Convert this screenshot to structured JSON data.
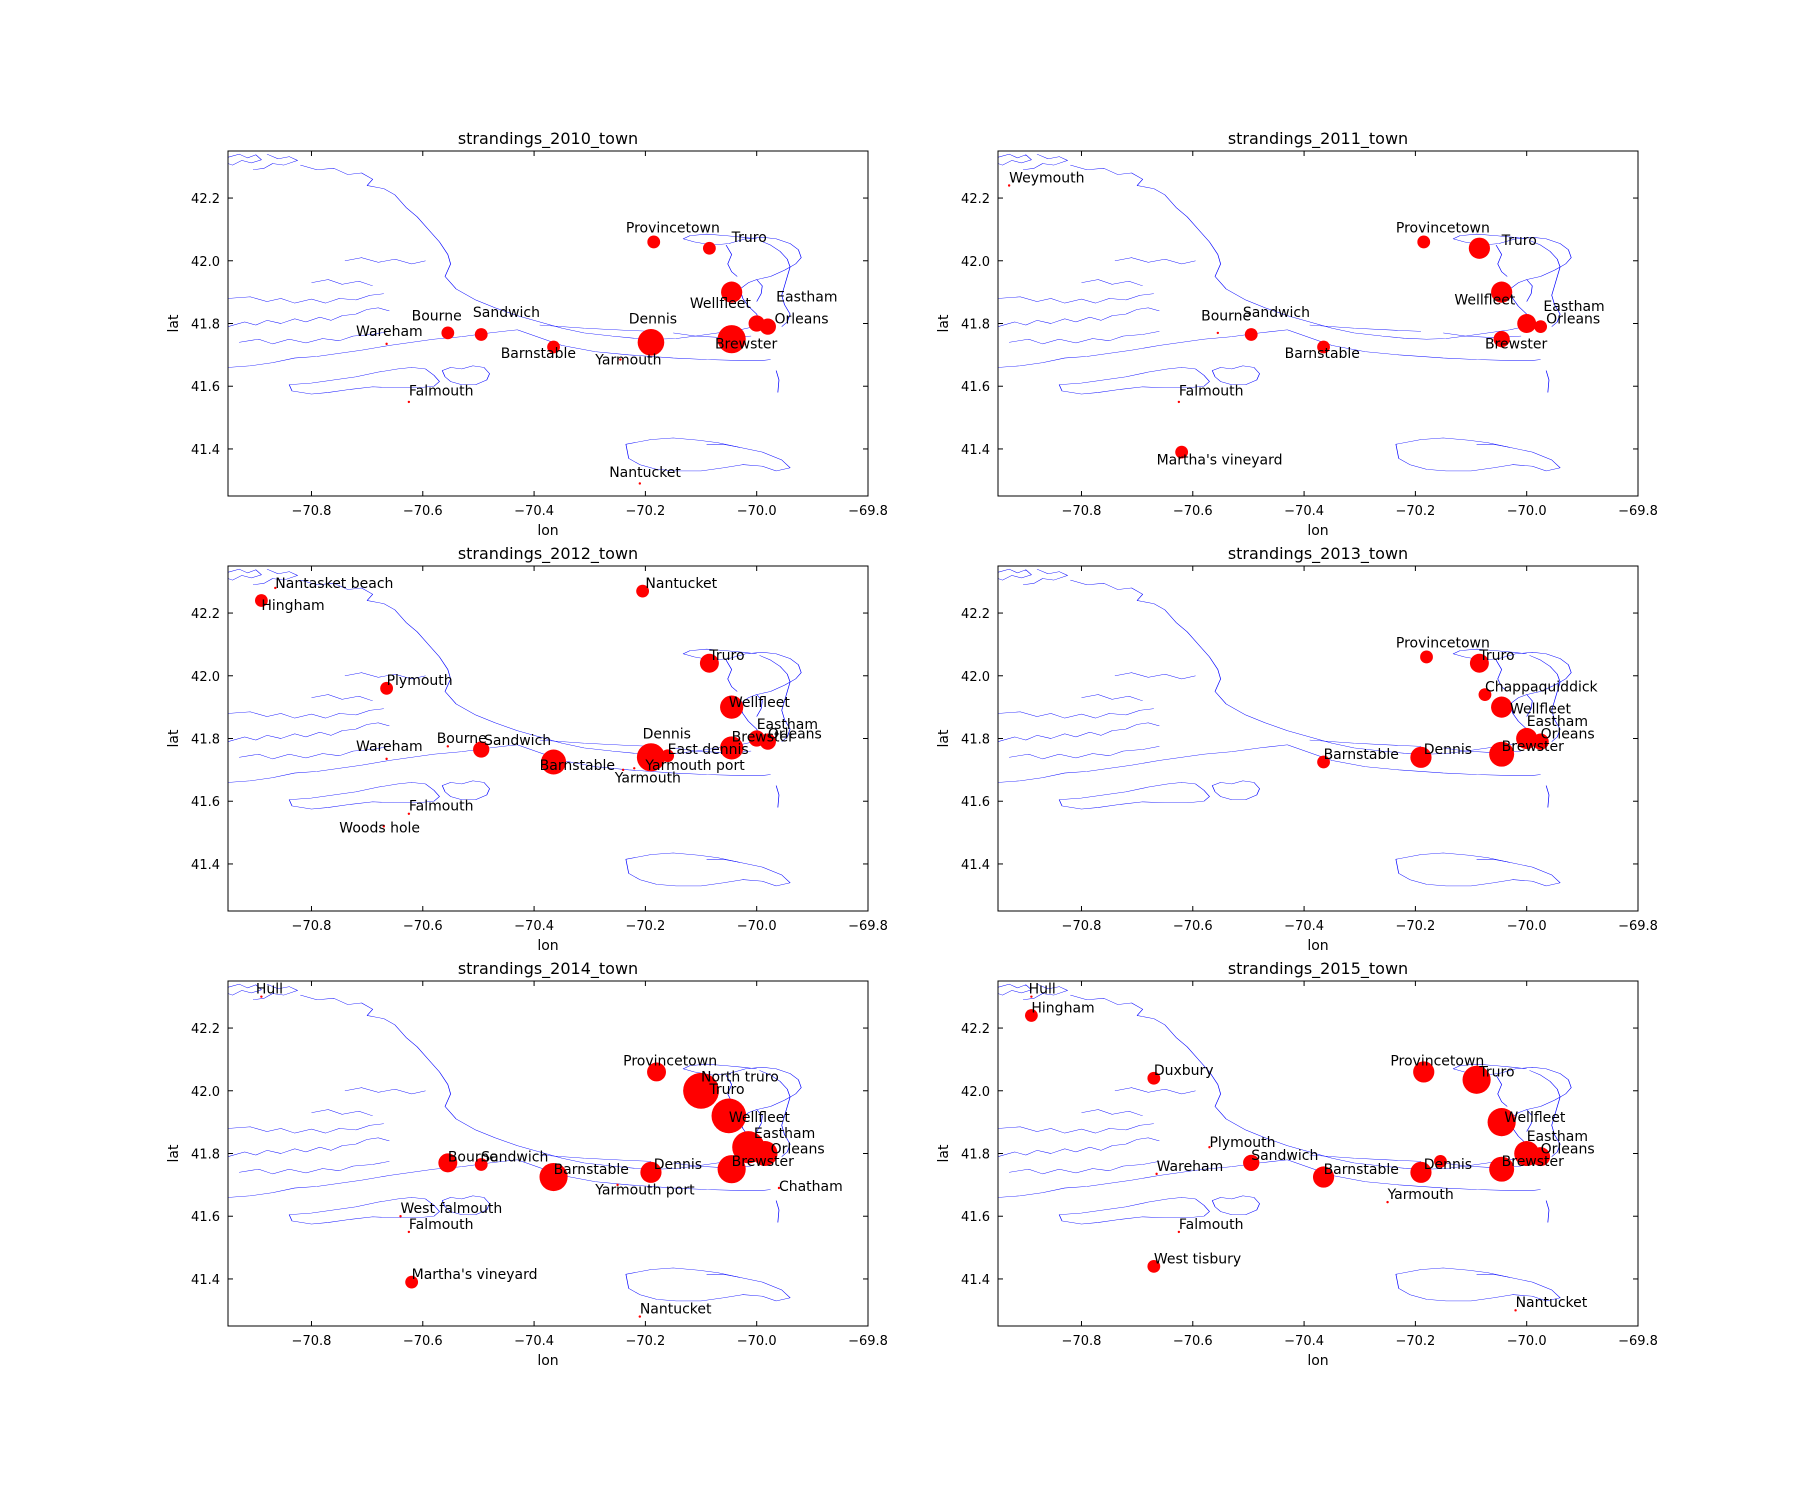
{
  "figure": {
    "xlabel": "lon",
    "ylabel": "lat",
    "xticks": [
      "−70.8",
      "−70.6",
      "−70.4",
      "−70.2",
      "−70.0",
      "−69.8"
    ],
    "yticks": [
      "41.4",
      "41.6",
      "41.8",
      "42.0",
      "42.2"
    ],
    "coast_color": "#0000ff",
    "marker_color": "#ff0000"
  },
  "chart_data": [
    {
      "type": "scatter",
      "title": "strandings_2010_town",
      "xlabel": "lon",
      "ylabel": "lat",
      "xlim": [
        -70.95,
        -69.8
      ],
      "ylim": [
        41.25,
        42.35
      ],
      "points": [
        {
          "label": "Provincetown",
          "lon": -70.185,
          "lat": 42.06,
          "size": 1,
          "lx": -70.235,
          "ly": 42.09
        },
        {
          "label": "Truro",
          "lon": -70.085,
          "lat": 42.04,
          "size": 1,
          "lx": -70.045,
          "ly": 42.06
        },
        {
          "label": "Wellfleet",
          "lon": -70.045,
          "lat": 41.9,
          "size": 4,
          "lx": -70.12,
          "ly": 41.85
        },
        {
          "label": "Eastham",
          "lon": -70.0,
          "lat": 41.8,
          "size": 2,
          "lx": -69.965,
          "ly": 41.87
        },
        {
          "label": "Orleans",
          "lon": -69.98,
          "lat": 41.79,
          "size": 2,
          "lx": -69.968,
          "ly": 41.8
        },
        {
          "label": "Brewster",
          "lon": -70.045,
          "lat": 41.75,
          "size": 8,
          "lx": -70.075,
          "ly": 41.72
        },
        {
          "label": "Dennis",
          "lon": -70.19,
          "lat": 41.74,
          "size": 7,
          "lx": -70.23,
          "ly": 41.8
        },
        {
          "label": "Yarmouth",
          "lon": -70.245,
          "lat": 41.685,
          "size": 0,
          "lx": -70.29,
          "ly": 41.67
        },
        {
          "label": "Barnstable",
          "lon": -70.365,
          "lat": 41.725,
          "size": 1,
          "lx": -70.46,
          "ly": 41.69
        },
        {
          "label": "Sandwich",
          "lon": -70.495,
          "lat": 41.765,
          "size": 1,
          "lx": -70.51,
          "ly": 41.82
        },
        {
          "label": "Bourne",
          "lon": -70.555,
          "lat": 41.77,
          "size": 1,
          "lx": -70.62,
          "ly": 41.81
        },
        {
          "label": "Wareham",
          "lon": -70.665,
          "lat": 41.735,
          "size": 0,
          "lx": -70.72,
          "ly": 41.76
        },
        {
          "label": "Falmouth",
          "lon": -70.625,
          "lat": 41.55,
          "size": 0,
          "lx": -70.625,
          "ly": 41.57
        },
        {
          "label": "Nantucket",
          "lon": -70.21,
          "lat": 41.29,
          "size": 0,
          "lx": -70.265,
          "ly": 41.31
        }
      ]
    },
    {
      "type": "scatter",
      "title": "strandings_2011_town",
      "xlabel": "lon",
      "ylabel": "lat",
      "xlim": [
        -70.95,
        -69.8
      ],
      "ylim": [
        41.25,
        42.35
      ],
      "points": [
        {
          "label": "Weymouth",
          "lon": -70.93,
          "lat": 42.24,
          "size": 0,
          "lx": -70.93,
          "ly": 42.25
        },
        {
          "label": "Provincetown",
          "lon": -70.185,
          "lat": 42.06,
          "size": 1,
          "lx": -70.235,
          "ly": 42.09
        },
        {
          "label": "Truro",
          "lon": -70.085,
          "lat": 42.04,
          "size": 4,
          "lx": -70.045,
          "ly": 42.05
        },
        {
          "label": "Wellfleet",
          "lon": -70.045,
          "lat": 41.9,
          "size": 4,
          "lx": -70.13,
          "ly": 41.86
        },
        {
          "label": "Eastham",
          "lon": -70.0,
          "lat": 41.8,
          "size": 3,
          "lx": -69.97,
          "ly": 41.84
        },
        {
          "label": "Orleans",
          "lon": -69.975,
          "lat": 41.79,
          "size": 1,
          "lx": -69.965,
          "ly": 41.8
        },
        {
          "label": "Brewster",
          "lon": -70.045,
          "lat": 41.75,
          "size": 2,
          "lx": -70.075,
          "ly": 41.72
        },
        {
          "label": "Barnstable",
          "lon": -70.365,
          "lat": 41.725,
          "size": 1,
          "lx": -70.435,
          "ly": 41.69
        },
        {
          "label": "Sandwich",
          "lon": -70.495,
          "lat": 41.765,
          "size": 1,
          "lx": -70.51,
          "ly": 41.82
        },
        {
          "label": "Bourne",
          "lon": -70.555,
          "lat": 41.77,
          "size": 0,
          "lx": -70.585,
          "ly": 41.81
        },
        {
          "label": "Falmouth",
          "lon": -70.625,
          "lat": 41.55,
          "size": 0,
          "lx": -70.625,
          "ly": 41.57
        },
        {
          "label": "Martha's vineyard",
          "lon": -70.62,
          "lat": 41.39,
          "size": 1,
          "lx": -70.665,
          "ly": 41.35
        }
      ]
    },
    {
      "type": "scatter",
      "title": "strandings_2012_town",
      "xlabel": "lon",
      "ylabel": "lat",
      "xlim": [
        -70.95,
        -69.8
      ],
      "ylim": [
        41.25,
        42.35
      ],
      "points": [
        {
          "label": "Nantasket beach",
          "lon": -70.865,
          "lat": 42.28,
          "size": 0,
          "lx": -70.865,
          "ly": 42.28
        },
        {
          "label": "Hingham",
          "lon": -70.89,
          "lat": 42.24,
          "size": 1,
          "lx": -70.89,
          "ly": 42.21
        },
        {
          "label": "Nantucket",
          "lon": -70.205,
          "lat": 42.27,
          "size": 1,
          "lx": -70.2,
          "ly": 42.28
        },
        {
          "label": "Truro",
          "lon": -70.085,
          "lat": 42.04,
          "size": 3,
          "lx": -70.085,
          "ly": 42.05
        },
        {
          "label": "Plymouth",
          "lon": -70.665,
          "lat": 41.96,
          "size": 1,
          "lx": -70.665,
          "ly": 41.97
        },
        {
          "label": "Wellfleet",
          "lon": -70.045,
          "lat": 41.9,
          "size": 5,
          "lx": -70.05,
          "ly": 41.9
        },
        {
          "label": "Eastham",
          "lon": -70.0,
          "lat": 41.8,
          "size": 2,
          "lx": -70.0,
          "ly": 41.83
        },
        {
          "label": "Orleans",
          "lon": -69.98,
          "lat": 41.79,
          "size": 2,
          "lx": -69.98,
          "ly": 41.8
        },
        {
          "label": "Brewster",
          "lon": -70.045,
          "lat": 41.77,
          "size": 5,
          "lx": -70.045,
          "ly": 41.79
        },
        {
          "label": "Dennis",
          "lon": -70.19,
          "lat": 41.74,
          "size": 8,
          "lx": -70.205,
          "ly": 41.8
        },
        {
          "label": "East dennis",
          "lon": -70.16,
          "lat": 41.745,
          "size": 1,
          "lx": -70.16,
          "ly": 41.75
        },
        {
          "label": "Yarmouth port",
          "lon": -70.22,
          "lat": 41.705,
          "size": 0,
          "lx": -70.2,
          "ly": 41.7
        },
        {
          "label": "Yarmouth",
          "lon": -70.24,
          "lat": 41.7,
          "size": 0,
          "lx": -70.255,
          "ly": 41.66
        },
        {
          "label": "Barnstable",
          "lon": -70.365,
          "lat": 41.725,
          "size": 6,
          "lx": -70.39,
          "ly": 41.7
        },
        {
          "label": "Sandwich",
          "lon": -70.495,
          "lat": 41.765,
          "size": 2,
          "lx": -70.49,
          "ly": 41.78
        },
        {
          "label": "Bourne",
          "lon": -70.555,
          "lat": 41.775,
          "size": 0,
          "lx": -70.575,
          "ly": 41.785
        },
        {
          "label": "Wareham",
          "lon": -70.665,
          "lat": 41.735,
          "size": 0,
          "lx": -70.72,
          "ly": 41.76
        },
        {
          "label": "Falmouth",
          "lon": -70.625,
          "lat": 41.56,
          "size": 0,
          "lx": -70.625,
          "ly": 41.57
        },
        {
          "label": "Woods hole",
          "lon": -70.67,
          "lat": 41.52,
          "size": 0,
          "lx": -70.75,
          "ly": 41.5
        }
      ]
    },
    {
      "type": "scatter",
      "title": "strandings_2013_town",
      "xlabel": "lon",
      "ylabel": "lat",
      "xlim": [
        -70.95,
        -69.8
      ],
      "ylim": [
        41.25,
        42.35
      ],
      "points": [
        {
          "label": "Provincetown",
          "lon": -70.18,
          "lat": 42.06,
          "size": 1,
          "lx": -70.235,
          "ly": 42.09
        },
        {
          "label": "Truro",
          "lon": -70.085,
          "lat": 42.04,
          "size": 3,
          "lx": -70.085,
          "ly": 42.05
        },
        {
          "label": "Chappaquiddick",
          "lon": -70.075,
          "lat": 41.94,
          "size": 1,
          "lx": -70.075,
          "ly": 41.95
        },
        {
          "label": "Wellfleet",
          "lon": -70.045,
          "lat": 41.9,
          "size": 4,
          "lx": -70.03,
          "ly": 41.88
        },
        {
          "label": "Eastham",
          "lon": -70.0,
          "lat": 41.8,
          "size": 4,
          "lx": -70.0,
          "ly": 41.84
        },
        {
          "label": "Orleans",
          "lon": -69.975,
          "lat": 41.79,
          "size": 2,
          "lx": -69.975,
          "ly": 41.8
        },
        {
          "label": "Brewster",
          "lon": -70.045,
          "lat": 41.75,
          "size": 6,
          "lx": -70.045,
          "ly": 41.76
        },
        {
          "label": "Dennis",
          "lon": -70.19,
          "lat": 41.74,
          "size": 4,
          "lx": -70.185,
          "ly": 41.75
        },
        {
          "label": "Barnstable",
          "lon": -70.365,
          "lat": 41.725,
          "size": 1,
          "lx": -70.365,
          "ly": 41.735
        }
      ]
    },
    {
      "type": "scatter",
      "title": "strandings_2014_town",
      "xlabel": "lon",
      "ylabel": "lat",
      "xlim": [
        -70.95,
        -69.8
      ],
      "ylim": [
        41.25,
        42.35
      ],
      "points": [
        {
          "label": "Hull",
          "lon": -70.89,
          "lat": 42.3,
          "size": 0,
          "lx": -70.9,
          "ly": 42.31
        },
        {
          "label": "Provincetown",
          "lon": -70.18,
          "lat": 42.06,
          "size": 3,
          "lx": -70.24,
          "ly": 42.08
        },
        {
          "label": "North truro",
          "lon": -70.1,
          "lat": 42.0,
          "size": 14,
          "lx": -70.1,
          "ly": 42.03
        },
        {
          "label": "Truro",
          "lon": -70.085,
          "lat": 42.0,
          "size": 0,
          "lx": -70.085,
          "ly": 41.99
        },
        {
          "label": "Wellfleet",
          "lon": -70.05,
          "lat": 41.92,
          "size": 13,
          "lx": -70.05,
          "ly": 41.9
        },
        {
          "label": "Eastham",
          "lon": -70.015,
          "lat": 41.82,
          "size": 11,
          "lx": -70.005,
          "ly": 41.85
        },
        {
          "label": "Orleans",
          "lon": -69.985,
          "lat": 41.8,
          "size": 6,
          "lx": -69.975,
          "ly": 41.8
        },
        {
          "label": "Brewster",
          "lon": -70.045,
          "lat": 41.75,
          "size": 8,
          "lx": -70.045,
          "ly": 41.76
        },
        {
          "label": "Chatham",
          "lon": -69.96,
          "lat": 41.69,
          "size": 0,
          "lx": -69.96,
          "ly": 41.68
        },
        {
          "label": "Dennis",
          "lon": -70.19,
          "lat": 41.74,
          "size": 4,
          "lx": -70.185,
          "ly": 41.75
        },
        {
          "label": "Yarmouth port",
          "lon": -70.25,
          "lat": 41.7,
          "size": 0,
          "lx": -70.29,
          "ly": 41.67
        },
        {
          "label": "Barnstable",
          "lon": -70.365,
          "lat": 41.725,
          "size": 8,
          "lx": -70.365,
          "ly": 41.735
        },
        {
          "label": "Sandwich",
          "lon": -70.495,
          "lat": 41.765,
          "size": 1,
          "lx": -70.495,
          "ly": 41.775
        },
        {
          "label": "Bourne",
          "lon": -70.555,
          "lat": 41.77,
          "size": 3,
          "lx": -70.555,
          "ly": 41.775
        },
        {
          "label": "West falmouth",
          "lon": -70.64,
          "lat": 41.6,
          "size": 0,
          "lx": -70.64,
          "ly": 41.61
        },
        {
          "label": "Falmouth",
          "lon": -70.625,
          "lat": 41.55,
          "size": 0,
          "lx": -70.625,
          "ly": 41.56
        },
        {
          "label": "Martha's vineyard",
          "lon": -70.62,
          "lat": 41.39,
          "size": 1,
          "lx": -70.62,
          "ly": 41.4
        },
        {
          "label": "Nantucket",
          "lon": -70.21,
          "lat": 41.28,
          "size": 0,
          "lx": -70.21,
          "ly": 41.29
        }
      ]
    },
    {
      "type": "scatter",
      "title": "strandings_2015_town",
      "xlabel": "lon",
      "ylabel": "lat",
      "xlim": [
        -70.95,
        -69.8
      ],
      "ylim": [
        41.25,
        42.35
      ],
      "points": [
        {
          "label": "Hull",
          "lon": -70.89,
          "lat": 42.3,
          "size": 0,
          "lx": -70.895,
          "ly": 42.31
        },
        {
          "label": "Hingham",
          "lon": -70.89,
          "lat": 42.24,
          "size": 1,
          "lx": -70.89,
          "ly": 42.25
        },
        {
          "label": "Duxbury",
          "lon": -70.67,
          "lat": 42.04,
          "size": 1,
          "lx": -70.67,
          "ly": 42.05
        },
        {
          "label": "Provincetown",
          "lon": -70.185,
          "lat": 42.06,
          "size": 4,
          "lx": -70.245,
          "ly": 42.08
        },
        {
          "label": "Truro",
          "lon": -70.09,
          "lat": 42.035,
          "size": 8,
          "lx": -70.085,
          "ly": 42.045
        },
        {
          "label": "Wellfleet",
          "lon": -70.045,
          "lat": 41.9,
          "size": 8,
          "lx": -70.04,
          "ly": 41.9
        },
        {
          "label": "Eastham",
          "lon": -70.0,
          "lat": 41.8,
          "size": 6,
          "lx": -70.0,
          "ly": 41.84
        },
        {
          "label": "Orleans",
          "lon": -69.975,
          "lat": 41.79,
          "size": 3,
          "lx": -69.975,
          "ly": 41.8
        },
        {
          "label": "Brewster",
          "lon": -70.045,
          "lat": 41.75,
          "size": 6,
          "lx": -70.045,
          "ly": 41.76
        },
        {
          "label": "Dennis",
          "lon": -70.19,
          "lat": 41.74,
          "size": 4,
          "lx": -70.185,
          "ly": 41.75
        },
        {
          "label": "",
          "lon": -70.155,
          "lat": 41.775,
          "size": 1,
          "lx": -70.155,
          "ly": 41.775
        },
        {
          "label": "Yarmouth",
          "lon": -70.25,
          "lat": 41.645,
          "size": 0,
          "lx": -70.25,
          "ly": 41.655
        },
        {
          "label": "Barnstable",
          "lon": -70.365,
          "lat": 41.725,
          "size": 4,
          "lx": -70.365,
          "ly": 41.735
        },
        {
          "label": "Sandwich",
          "lon": -70.495,
          "lat": 41.77,
          "size": 2,
          "lx": -70.495,
          "ly": 41.78
        },
        {
          "label": "Plymouth",
          "lon": -70.57,
          "lat": 41.82,
          "size": 0,
          "lx": -70.57,
          "ly": 41.82
        },
        {
          "label": "Wareham",
          "lon": -70.665,
          "lat": 41.735,
          "size": 0,
          "lx": -70.665,
          "ly": 41.745
        },
        {
          "label": "Falmouth",
          "lon": -70.625,
          "lat": 41.55,
          "size": 0,
          "lx": -70.625,
          "ly": 41.56
        },
        {
          "label": "West tisbury",
          "lon": -70.67,
          "lat": 41.44,
          "size": 1,
          "lx": -70.67,
          "ly": 41.45
        },
        {
          "label": "Nantucket",
          "lon": -70.02,
          "lat": 41.3,
          "size": 0,
          "lx": -70.02,
          "ly": 41.31
        }
      ]
    }
  ]
}
